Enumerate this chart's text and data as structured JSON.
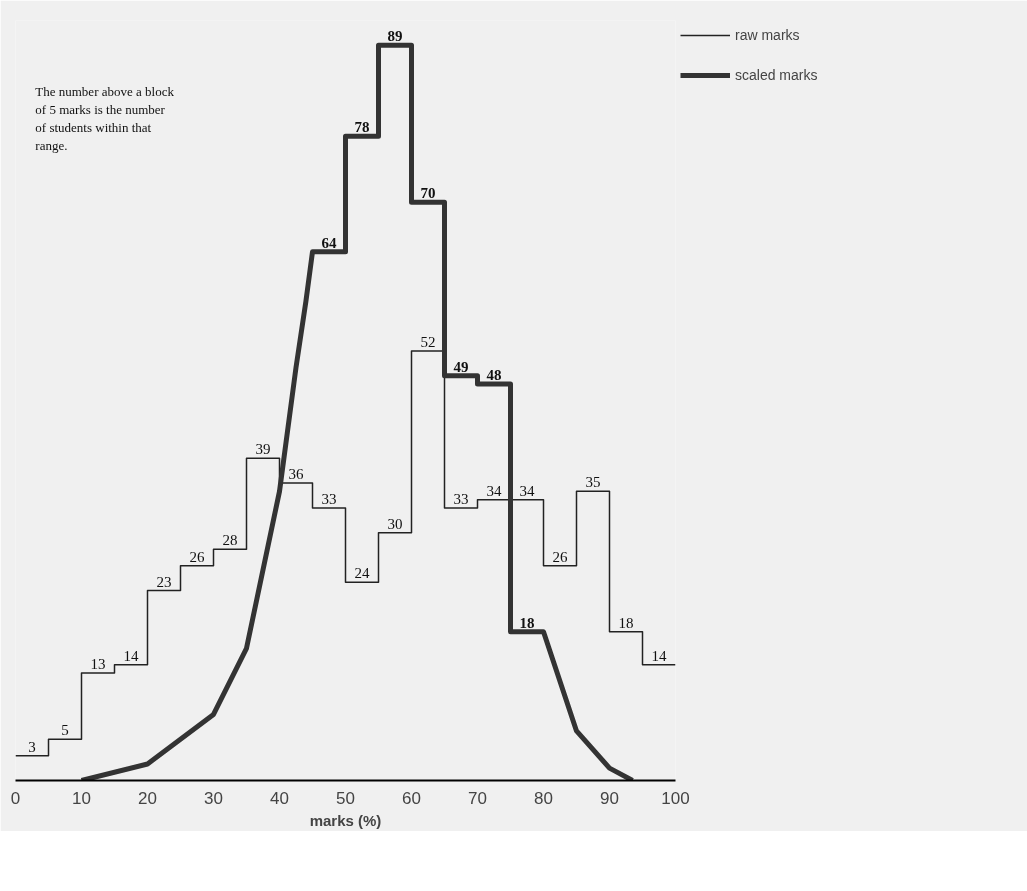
{
  "chart_data": {
    "type": "line",
    "xlabel": "marks (%)",
    "xlim": [
      0,
      100
    ],
    "xticks": [
      0,
      10,
      20,
      30,
      40,
      50,
      60,
      70,
      80,
      90,
      100
    ],
    "ylim": [
      0,
      92
    ],
    "tick_labels": "x",
    "grid": false,
    "legend": "right",
    "annotations": [
      "The number above a block of  5  marks is the number of students within that range."
    ],
    "series": [
      {
        "name": "raw marks",
        "type": "step",
        "color": "#222222",
        "x": [
          0,
          5,
          10,
          15,
          20,
          25,
          30,
          35,
          40,
          45,
          50,
          55,
          60,
          65,
          70,
          75,
          80,
          85,
          90,
          95,
          100
        ],
        "values": [
          3,
          5,
          13,
          14,
          23,
          26,
          28,
          39,
          36,
          33,
          24,
          30,
          52,
          33,
          34,
          34,
          26,
          35,
          18,
          14,
          14
        ],
        "value_labels": [
          "3",
          "5",
          "13",
          "14",
          "23",
          "26",
          "28",
          "39",
          "36",
          "33",
          "24",
          "30",
          "52",
          "33",
          "34",
          "34",
          "26",
          "35",
          "18",
          "14",
          null
        ]
      },
      {
        "name": "scaled marks",
        "color": "#333333",
        "x": [
          10,
          20,
          30,
          35,
          40,
          42.5,
          44,
          45,
          50,
          50,
          55,
          55,
          60,
          60,
          65,
          65,
          70,
          70,
          75,
          75,
          80,
          85,
          90,
          93.5
        ],
        "values": [
          0,
          2,
          8,
          16,
          35,
          50,
          58,
          64,
          64,
          78,
          78,
          89,
          89,
          70,
          70,
          49,
          49,
          48,
          48,
          18,
          18,
          6,
          1.5,
          0
        ],
        "value_labels": [
          null,
          null,
          null,
          null,
          null,
          null,
          null,
          "64",
          null,
          "78",
          null,
          "89",
          null,
          "70",
          null,
          "49",
          null,
          "48",
          null,
          "18",
          null,
          null,
          null,
          null
        ]
      }
    ]
  }
}
